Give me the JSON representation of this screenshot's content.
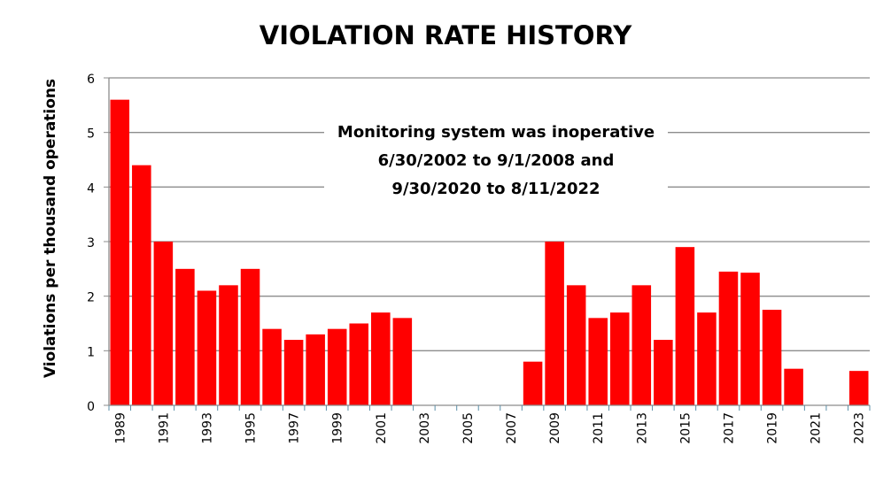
{
  "chart_data": {
    "type": "bar",
    "title": "VIOLATION RATE HISTORY",
    "xlabel": "",
    "ylabel": "Violations per thousand operations",
    "ylim": [
      0,
      6
    ],
    "yticks": [
      0,
      1,
      2,
      3,
      4,
      5,
      6
    ],
    "grid": true,
    "bar_color": "#ff0000",
    "categories": [
      "1989",
      "1990",
      "1991",
      "1992",
      "1993",
      "1994",
      "1995",
      "1996",
      "1997",
      "1998",
      "1999",
      "2000",
      "2001",
      "2002",
      "2003",
      "2004",
      "2005",
      "2006",
      "2007",
      "2008",
      "2009",
      "2010",
      "2011",
      "2012",
      "2013",
      "2014",
      "2015",
      "2016",
      "2017",
      "2018",
      "2019",
      "2020",
      "2021",
      "2022",
      "2023"
    ],
    "tick_labels": [
      "1989",
      "1991",
      "1993",
      "1995",
      "1997",
      "1999",
      "2001",
      "2003",
      "2005",
      "2007",
      "2009",
      "2011",
      "2013",
      "2015",
      "2017",
      "2019",
      "2021",
      "2023"
    ],
    "values": [
      5.6,
      4.4,
      3.0,
      2.5,
      2.1,
      2.2,
      2.5,
      1.4,
      1.2,
      1.3,
      1.4,
      1.5,
      1.7,
      1.6,
      null,
      null,
      null,
      null,
      null,
      0.8,
      3.0,
      2.2,
      1.6,
      1.7,
      2.2,
      1.2,
      2.9,
      1.7,
      2.45,
      2.43,
      1.75,
      0.67,
      null,
      null,
      0.63
    ],
    "annotation": [
      "Monitoring system was inoperative",
      "6/30/2002 to 9/1/2008 and",
      "9/30/2020 to  8/11/2022"
    ]
  }
}
